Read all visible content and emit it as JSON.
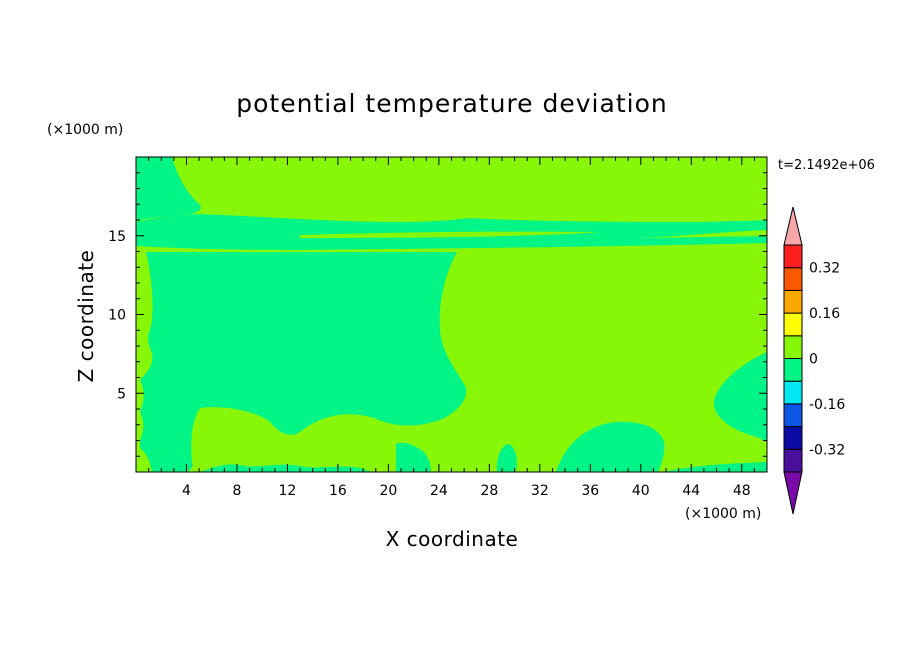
{
  "chart_data": {
    "type": "contour",
    "title": "potential temperature deviation",
    "xlabel": "X coordinate",
    "ylabel": "Z coordinate",
    "x_unit_label": "(×1000 m)",
    "y_unit_label": "(×1000 m)",
    "time_label": "t=2.1492e+06",
    "xlim": [
      0,
      50
    ],
    "ylim": [
      0,
      20
    ],
    "x_ticks": [
      4,
      8,
      12,
      16,
      20,
      24,
      28,
      32,
      36,
      40,
      44,
      48
    ],
    "y_ticks": [
      5,
      10,
      15
    ],
    "colorbar": {
      "levels": [
        -0.4,
        -0.32,
        -0.24,
        -0.16,
        -0.08,
        0,
        0.08,
        0.16,
        0.24,
        0.32,
        0.4
      ],
      "colors": [
        "#4b0f9e",
        "#0b0ba3",
        "#0c55e5",
        "#00e8f2",
        "#00f486",
        "#88f707",
        "#fbfd00",
        "#fba800",
        "#fb5800",
        "#fa2020"
      ],
      "under_color": "#7a0aa8",
      "over_color": "#f8a8a8",
      "tick_labels": [
        "-0.32",
        "-0.16",
        "0",
        "0.16",
        "0.32"
      ],
      "tick_values": [
        -0.32,
        -0.16,
        0,
        0.16,
        0.32
      ]
    },
    "field": {
      "background_level": "0 to 0.08",
      "background_color": "#88f707",
      "negative_level": "-0.08 to 0",
      "negative_color": "#00f486"
    }
  }
}
